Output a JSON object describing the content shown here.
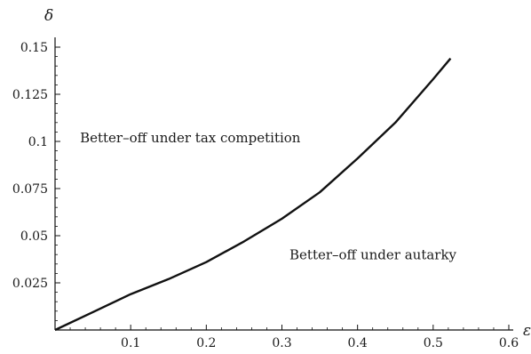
{
  "chart_data": {
    "type": "line",
    "title": "",
    "xlabel": "ε",
    "ylabel": "δ",
    "xlim": [
      0,
      0.6
    ],
    "ylim": [
      0,
      0.15
    ],
    "grid": false,
    "legend": "none",
    "x_ticks": [
      {
        "value": 0.1,
        "label": "0.1"
      },
      {
        "value": 0.2,
        "label": "0.2"
      },
      {
        "value": 0.3,
        "label": "0.3"
      },
      {
        "value": 0.4,
        "label": "0.4"
      },
      {
        "value": 0.5,
        "label": "0.5"
      },
      {
        "value": 0.6,
        "label": "0.6"
      }
    ],
    "y_ticks": [
      {
        "value": 0.025,
        "label": "0.025"
      },
      {
        "value": 0.05,
        "label": "0.05"
      },
      {
        "value": 0.075,
        "label": "0.075"
      },
      {
        "value": 0.1,
        "label": "0.1"
      },
      {
        "value": 0.125,
        "label": "0.125"
      },
      {
        "value": 0.15,
        "label": "0.15"
      }
    ],
    "series": [
      {
        "color": "#111111",
        "points": [
          {
            "x": 0.0,
            "y": 0.0
          },
          {
            "x": 0.05,
            "y": 0.0095
          },
          {
            "x": 0.1,
            "y": 0.019
          },
          {
            "x": 0.15,
            "y": 0.027
          },
          {
            "x": 0.2,
            "y": 0.036
          },
          {
            "x": 0.25,
            "y": 0.047
          },
          {
            "x": 0.3,
            "y": 0.059
          },
          {
            "x": 0.35,
            "y": 0.073
          },
          {
            "x": 0.4,
            "y": 0.091
          },
          {
            "x": 0.45,
            "y": 0.11
          },
          {
            "x": 0.5,
            "y": 0.133
          },
          {
            "x": 0.523,
            "y": 0.144
          }
        ]
      }
    ],
    "annotations": [
      {
        "text": "Better–off under tax competition",
        "x": 0.033,
        "y": 0.0995
      },
      {
        "text": "Better–off under autarky",
        "x": 0.31,
        "y": 0.0375
      }
    ]
  }
}
